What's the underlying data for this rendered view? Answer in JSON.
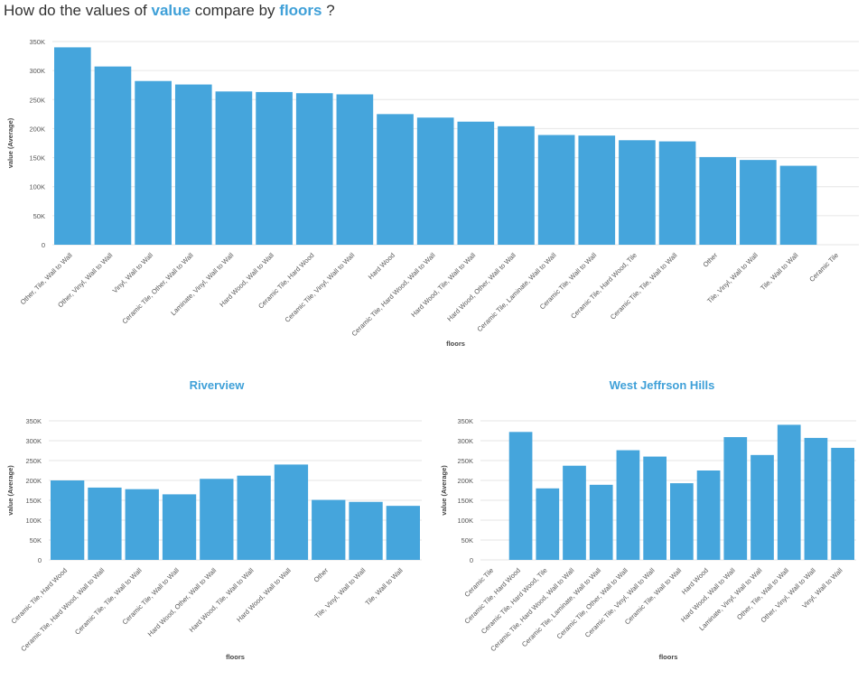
{
  "question": {
    "prefix": "How do the values of",
    "measure": "value",
    "middle": "compare by",
    "dimension": "floors",
    "suffix": "?"
  },
  "colors": {
    "bar": "#45a5dc",
    "accent": "#3fa0d8",
    "grid": "#e6e6e6",
    "text": "#555555"
  },
  "chart_data": [
    {
      "type": "bar",
      "title": "",
      "xlabel": "floors",
      "ylabel": "value (Average)",
      "ylim": [
        0,
        350000
      ],
      "yticks": [
        0,
        50000,
        100000,
        150000,
        200000,
        250000,
        300000,
        350000
      ],
      "ytick_labels": [
        "0",
        "50K",
        "100K",
        "150K",
        "200K",
        "250K",
        "300K",
        "350K"
      ],
      "grid": true,
      "categories": [
        "Other, Tile, Wall to Wall",
        "Other, Vinyl, Wall to Wall",
        "Vinyl, Wall to Wall",
        "Ceramic Tile, Other, Wall to Wall",
        "Laminate, Vinyl, Wall to Wall",
        "Hard Wood, Wall to Wall",
        "Ceramic Tile, Hard Wood",
        "Ceramic Tile, Vinyl, Wall to Wall",
        "Hard Wood",
        "Ceramic Tile, Hard Wood, Wall to Wall",
        "Hard Wood, Tile, Wall to Wall",
        "Hard Wood, Other, Wall to Wall",
        "Ceramic Tile, Laminate, Wall to Wall",
        "Ceramic Tile, Wall to Wall",
        "Ceramic Tile, Hard Wood, Tile",
        "Ceramic Tile, Tile, Wall to Wall",
        "Other",
        "Tile, Vinyl, Wall to Wall",
        "Tile, Wall to Wall",
        "Ceramic Tile"
      ],
      "values": [
        340000,
        307000,
        282000,
        276000,
        264000,
        263000,
        261000,
        259000,
        225000,
        219000,
        212000,
        204000,
        189000,
        188000,
        180000,
        178000,
        151000,
        146000,
        136000,
        0
      ]
    },
    {
      "type": "bar",
      "title": "Riverview",
      "xlabel": "floors",
      "ylabel": "value (Average)",
      "ylim": [
        0,
        350000
      ],
      "yticks": [
        0,
        50000,
        100000,
        150000,
        200000,
        250000,
        300000,
        350000
      ],
      "ytick_labels": [
        "0",
        "50K",
        "100K",
        "150K",
        "200K",
        "250K",
        "300K",
        "350K"
      ],
      "grid": true,
      "categories": [
        "Ceramic Tile, Hard Wood",
        "Ceramic Tile, Hard Wood, Wall to Wall",
        "Ceramic Tile, Tile, Wall to Wall",
        "Ceramic Tile, Wall to Wall",
        "Hard Wood, Other, Wall to Wall",
        "Hard Wood, Tile, Wall to Wall",
        "Hard Wood, Wall to Wall",
        "Other",
        "Tile, Vinyl, Wall to Wall",
        "Tile, Wall to Wall"
      ],
      "values": [
        200000,
        182000,
        178000,
        165000,
        204000,
        212000,
        240000,
        151000,
        146000,
        136000
      ]
    },
    {
      "type": "bar",
      "title": "West Jeffrson Hills",
      "xlabel": "floors",
      "ylabel": "value (Average)",
      "ylim": [
        0,
        350000
      ],
      "yticks": [
        0,
        50000,
        100000,
        150000,
        200000,
        250000,
        300000,
        350000
      ],
      "ytick_labels": [
        "0",
        "50K",
        "100K",
        "150K",
        "200K",
        "250K",
        "300K",
        "350K"
      ],
      "grid": true,
      "categories": [
        "Ceramic Tile",
        "Ceramic Tile, Hard Wood",
        "Ceramic Tile, Hard Wood, Tile",
        "Ceramic Tile, Hard Wood, Wall to Wall",
        "Ceramic Tile, Laminate, Wall to Wall",
        "Ceramic Tile, Other, Wall to Wall",
        "Ceramic Tile, Vinyl, Wall to Wall",
        "Ceramic Tile, Wall to Wall",
        "Hard Wood",
        "Hard Wood, Wall to Wall",
        "Laminate, Vinyl, Wall to Wall",
        "Other, Tile, Wall to Wall",
        "Other, Vinyl, Wall to Wall",
        "Vinyl, Wall to Wall"
      ],
      "values": [
        0,
        322000,
        180000,
        237000,
        189000,
        276000,
        260000,
        193000,
        225000,
        309000,
        264000,
        340000,
        307000,
        282000
      ]
    }
  ]
}
